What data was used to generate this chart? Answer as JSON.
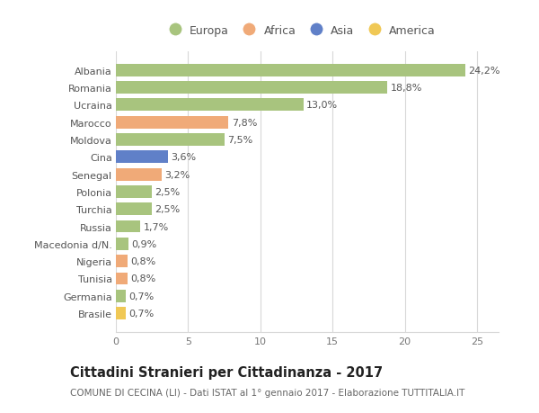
{
  "categories": [
    "Albania",
    "Romania",
    "Ucraina",
    "Marocco",
    "Moldova",
    "Cina",
    "Senegal",
    "Polonia",
    "Turchia",
    "Russia",
    "Macedonia d/N.",
    "Nigeria",
    "Tunisia",
    "Germania",
    "Brasile"
  ],
  "values": [
    24.2,
    18.8,
    13.0,
    7.8,
    7.5,
    3.6,
    3.2,
    2.5,
    2.5,
    1.7,
    0.9,
    0.8,
    0.8,
    0.7,
    0.7
  ],
  "labels": [
    "24,2%",
    "18,8%",
    "13,0%",
    "7,8%",
    "7,5%",
    "3,6%",
    "3,2%",
    "2,5%",
    "2,5%",
    "1,7%",
    "0,9%",
    "0,8%",
    "0,8%",
    "0,7%",
    "0,7%"
  ],
  "continent": [
    "Europa",
    "Europa",
    "Europa",
    "Africa",
    "Europa",
    "Asia",
    "Africa",
    "Europa",
    "Europa",
    "Europa",
    "Europa",
    "Africa",
    "Africa",
    "Europa",
    "America"
  ],
  "colors": {
    "Europa": "#a8c47e",
    "Africa": "#f0aa78",
    "Asia": "#6080c8",
    "America": "#f0c855"
  },
  "xlim": [
    0,
    26.5
  ],
  "xticks": [
    0,
    5,
    10,
    15,
    20,
    25
  ],
  "title": "Cittadini Stranieri per Cittadinanza - 2017",
  "subtitle": "COMUNE DI CECINA (LI) - Dati ISTAT al 1° gennaio 2017 - Elaborazione TUTTITALIA.IT",
  "bg_color": "#ffffff",
  "grid_color": "#d8d8d8",
  "bar_height": 0.72,
  "label_fontsize": 8.0,
  "ytick_fontsize": 8.0,
  "xtick_fontsize": 8.0,
  "title_fontsize": 10.5,
  "subtitle_fontsize": 7.5,
  "legend_order": [
    "Europa",
    "Africa",
    "Asia",
    "America"
  ]
}
